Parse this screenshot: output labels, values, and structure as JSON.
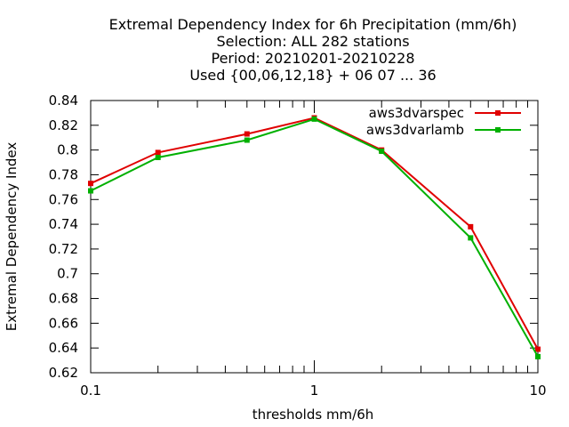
{
  "chart_data": {
    "type": "line",
    "title_lines": [
      "Extremal Dependency Index  for 6h Precipitation (mm/6h)",
      "Selection: ALL    282 stations",
      "Period: 20210201-20210228",
      "Used {00,06,12,18} + 06 07 ... 36"
    ],
    "xlabel": "thresholds mm/6h",
    "ylabel": "Extremal Dependency Index",
    "x_scale": "log",
    "xlim": [
      0.1,
      10
    ],
    "ylim": [
      0.62,
      0.84
    ],
    "x_ticks": [
      "0.1",
      "1",
      "10"
    ],
    "y_ticks": [
      "0.62",
      "0.64",
      "0.66",
      "0.68",
      "0.7",
      "0.72",
      "0.74",
      "0.76",
      "0.78",
      "0.8",
      "0.82",
      "0.84"
    ],
    "grid": false,
    "legend_position": "top-right",
    "x": [
      0.1,
      0.2,
      0.5,
      1,
      2,
      5,
      10
    ],
    "series": [
      {
        "name": "aws3dvarspec",
        "color": "#e00000",
        "values": [
          0.773,
          0.798,
          0.813,
          0.826,
          0.8,
          0.738,
          0.639
        ]
      },
      {
        "name": "aws3dvarlamb",
        "color": "#00b000",
        "values": [
          0.767,
          0.794,
          0.808,
          0.825,
          0.799,
          0.729,
          0.633
        ]
      }
    ]
  }
}
